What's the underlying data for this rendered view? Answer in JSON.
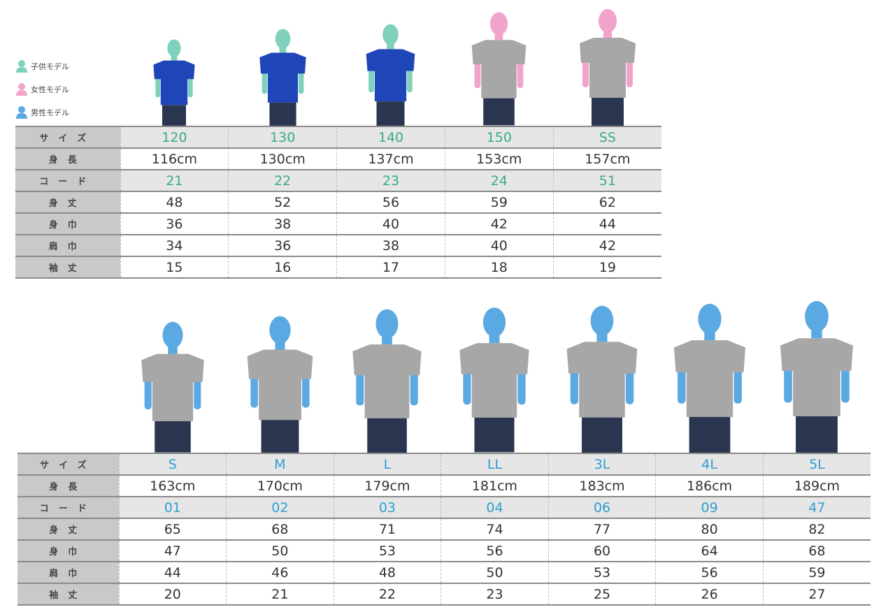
{
  "colors": {
    "child": "#7fd1bd",
    "female": "#f2a3cb",
    "male": "#5ba9e2",
    "kids_size_text": "#3aaa8c",
    "adult_size_text": "#2d9fd0",
    "navy_shirt": "#1f46b8",
    "gray_shirt": "#a7a7a7",
    "pants": "#2a3550"
  },
  "legend": [
    {
      "label": "子供モデル",
      "type": "child",
      "icon": "person-icon"
    },
    {
      "label": "女性モデル",
      "type": "female",
      "icon": "person-icon"
    },
    {
      "label": "男性モデル",
      "type": "male",
      "icon": "person-icon"
    }
  ],
  "row_labels": [
    "サイズ",
    "身長",
    "コード",
    "身丈",
    "身巾",
    "肩巾",
    "袖丈"
  ],
  "tables": [
    {
      "columns": [
        {
          "size": "120",
          "height": "116cm",
          "code": "21",
          "body_length": "48",
          "body_width": "36",
          "shoulder_width": "34",
          "sleeve_length": "15",
          "model": "child",
          "shirt": "navy"
        },
        {
          "size": "130",
          "height": "130cm",
          "code": "22",
          "body_length": "52",
          "body_width": "38",
          "shoulder_width": "36",
          "sleeve_length": "16",
          "model": "child",
          "shirt": "navy"
        },
        {
          "size": "140",
          "height": "137cm",
          "code": "23",
          "body_length": "56",
          "body_width": "40",
          "shoulder_width": "38",
          "sleeve_length": "17",
          "model": "child",
          "shirt": "navy"
        },
        {
          "size": "150",
          "height": "153cm",
          "code": "24",
          "body_length": "59",
          "body_width": "42",
          "shoulder_width": "40",
          "sleeve_length": "18",
          "model": "female",
          "shirt": "gray"
        },
        {
          "size": "SS",
          "height": "157cm",
          "code": "51",
          "body_length": "62",
          "body_width": "44",
          "shoulder_width": "42",
          "sleeve_length": "19",
          "model": "female",
          "shirt": "gray"
        }
      ]
    },
    {
      "columns": [
        {
          "size": "S",
          "height": "163cm",
          "code": "01",
          "body_length": "65",
          "body_width": "47",
          "shoulder_width": "44",
          "sleeve_length": "20",
          "model": "male",
          "shirt": "gray"
        },
        {
          "size": "M",
          "height": "170cm",
          "code": "02",
          "body_length": "68",
          "body_width": "50",
          "shoulder_width": "46",
          "sleeve_length": "21",
          "model": "male",
          "shirt": "gray"
        },
        {
          "size": "L",
          "height": "179cm",
          "code": "03",
          "body_length": "71",
          "body_width": "53",
          "shoulder_width": "48",
          "sleeve_length": "22",
          "model": "male",
          "shirt": "gray"
        },
        {
          "size": "LL",
          "height": "181cm",
          "code": "04",
          "body_length": "74",
          "body_width": "56",
          "shoulder_width": "50",
          "sleeve_length": "23",
          "model": "male",
          "shirt": "gray"
        },
        {
          "size": "3L",
          "height": "183cm",
          "code": "06",
          "body_length": "77",
          "body_width": "60",
          "shoulder_width": "53",
          "sleeve_length": "25",
          "model": "male",
          "shirt": "gray"
        },
        {
          "size": "4L",
          "height": "186cm",
          "code": "09",
          "body_length": "80",
          "body_width": "64",
          "shoulder_width": "56",
          "sleeve_length": "26",
          "model": "male",
          "shirt": "gray"
        },
        {
          "size": "5L",
          "height": "189cm",
          "code": "47",
          "body_length": "82",
          "body_width": "68",
          "shoulder_width": "59",
          "sleeve_length": "27",
          "model": "male",
          "shirt": "gray"
        }
      ]
    }
  ]
}
